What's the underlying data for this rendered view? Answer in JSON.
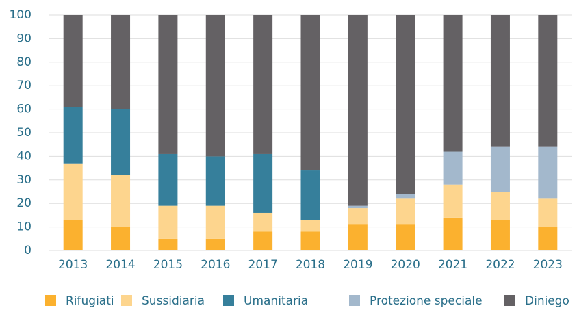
{
  "chart_data": {
    "type": "stacked_bar",
    "categories": [
      "2013",
      "2014",
      "2015",
      "2016",
      "2017",
      "2018",
      "2019",
      "2020",
      "2021",
      "2022",
      "2023"
    ],
    "series": [
      {
        "name": "Rifugiati",
        "color": "#fbb12f",
        "values": [
          13,
          10,
          5,
          5,
          8,
          8,
          11,
          11,
          14,
          13,
          10
        ]
      },
      {
        "name": "Sussidiaria",
        "color": "#fdd58e",
        "values": [
          24,
          22,
          14,
          14,
          8,
          5,
          7,
          11,
          14,
          12,
          12
        ]
      },
      {
        "name": "Umanitaria",
        "color": "#367f9b",
        "values": [
          24,
          28,
          22,
          21,
          25,
          21,
          0,
          0,
          0,
          0,
          0
        ]
      },
      {
        "name": "Protezione speciale",
        "color": "#a3b8cc",
        "values": [
          0,
          0,
          0,
          0,
          0,
          0,
          1,
          2,
          14,
          19,
          22
        ]
      },
      {
        "name": "Diniego",
        "color": "#646164",
        "values": [
          39,
          40,
          59,
          60,
          59,
          66,
          81,
          76,
          58,
          56,
          56
        ]
      }
    ],
    "ylim": [
      0,
      100
    ],
    "yticks": [
      0,
      10,
      20,
      30,
      40,
      50,
      60,
      70,
      80,
      90,
      100
    ],
    "grid": true,
    "legend": "bottom"
  }
}
